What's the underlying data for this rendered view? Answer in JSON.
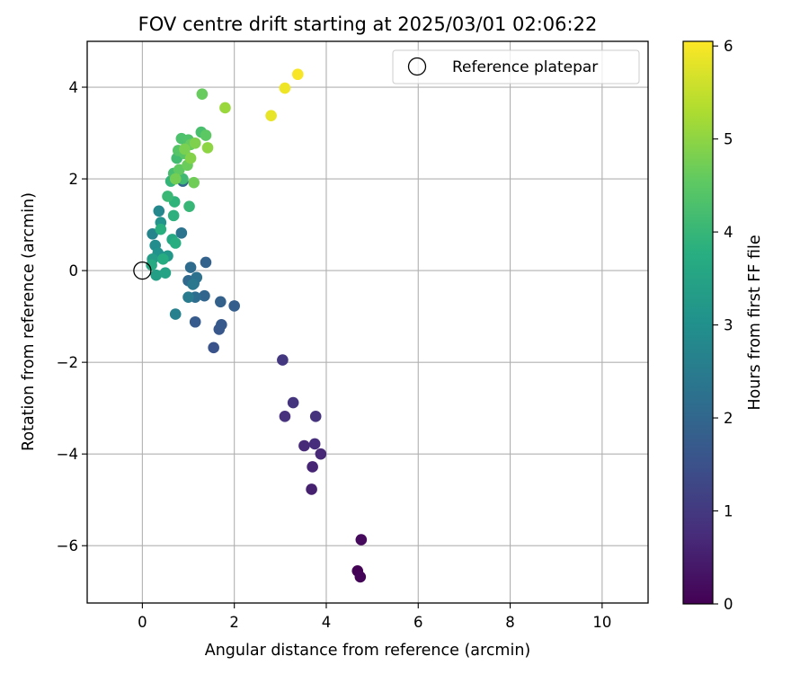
{
  "chart_data": {
    "type": "scatter",
    "title": "FOV centre drift starting at 2025/03/01 02:06:22",
    "xlabel": "Angular distance from reference (arcmin)",
    "ylabel": "Rotation from reference (arcmin)",
    "xlim": [
      -1.2,
      11.0
    ],
    "ylim": [
      -7.25,
      5.0
    ],
    "xticks": [
      0,
      2,
      4,
      6,
      8,
      10
    ],
    "yticks": [
      -6,
      -4,
      -2,
      0,
      2,
      4
    ],
    "xtick_labels": [
      "0",
      "2",
      "4",
      "6",
      "8",
      "10"
    ],
    "ytick_labels": [
      "−6",
      "−4",
      "−2",
      "0",
      "2",
      "4"
    ],
    "grid": true,
    "legend": {
      "placement": "upper-right",
      "label": "Reference platepar"
    },
    "reference_point": {
      "x": 0,
      "y": 0
    },
    "colorbar": {
      "label": "Hours from first FF file",
      "range": [
        0,
        6.05
      ],
      "ticks": [
        0,
        1,
        2,
        3,
        4,
        5,
        6
      ],
      "tick_labels": [
        "0",
        "1",
        "2",
        "3",
        "4",
        "5",
        "6"
      ],
      "colormap": "viridis"
    },
    "points": [
      {
        "x": 4.68,
        "y": -6.55,
        "c": 0.02
      },
      {
        "x": 4.74,
        "y": -6.68,
        "c": 0.05
      },
      {
        "x": 4.76,
        "y": -5.87,
        "c": 0.15
      },
      {
        "x": 3.68,
        "y": -4.77,
        "c": 0.55
      },
      {
        "x": 3.7,
        "y": -4.28,
        "c": 0.62
      },
      {
        "x": 3.88,
        "y": -4.0,
        "c": 0.68
      },
      {
        "x": 3.52,
        "y": -3.82,
        "c": 0.72
      },
      {
        "x": 3.75,
        "y": -3.78,
        "c": 0.78
      },
      {
        "x": 3.1,
        "y": -3.18,
        "c": 0.85
      },
      {
        "x": 3.77,
        "y": -3.18,
        "c": 0.88
      },
      {
        "x": 3.28,
        "y": -2.88,
        "c": 0.92
      },
      {
        "x": 3.05,
        "y": -1.95,
        "c": 0.98
      },
      {
        "x": 1.55,
        "y": -1.68,
        "c": 1.55
      },
      {
        "x": 1.67,
        "y": -1.28,
        "c": 1.62
      },
      {
        "x": 1.72,
        "y": -1.18,
        "c": 1.68
      },
      {
        "x": 1.15,
        "y": -1.12,
        "c": 1.72
      },
      {
        "x": 2.0,
        "y": -0.77,
        "c": 1.8
      },
      {
        "x": 1.7,
        "y": -0.68,
        "c": 1.85
      },
      {
        "x": 1.38,
        "y": 0.18,
        "c": 1.9
      },
      {
        "x": 1.35,
        "y": -0.55,
        "c": 1.95
      },
      {
        "x": 0.88,
        "y": 1.95,
        "c": 2.0
      },
      {
        "x": 1.0,
        "y": -0.22,
        "c": 2.05
      },
      {
        "x": 1.05,
        "y": 0.07,
        "c": 2.1
      },
      {
        "x": 1.15,
        "y": -0.58,
        "c": 2.15
      },
      {
        "x": 1.12,
        "y": -0.28,
        "c": 2.2
      },
      {
        "x": 1.18,
        "y": -0.15,
        "c": 2.25
      },
      {
        "x": 0.85,
        "y": 0.82,
        "c": 2.3
      },
      {
        "x": 1.1,
        "y": -0.3,
        "c": 2.4
      },
      {
        "x": 1.0,
        "y": -0.58,
        "c": 2.5
      },
      {
        "x": 0.72,
        "y": -0.95,
        "c": 2.6
      },
      {
        "x": 0.22,
        "y": 0.8,
        "c": 2.7
      },
      {
        "x": 0.36,
        "y": 1.3,
        "c": 2.8
      },
      {
        "x": 0.28,
        "y": 0.55,
        "c": 2.9
      },
      {
        "x": 0.42,
        "y": 0.3,
        "c": 3.0
      },
      {
        "x": 0.34,
        "y": 0.38,
        "c": 3.05
      },
      {
        "x": 0.4,
        "y": 1.05,
        "c": 3.1
      },
      {
        "x": 0.55,
        "y": 0.32,
        "c": 3.2
      },
      {
        "x": 0.22,
        "y": 0.25,
        "c": 3.3
      },
      {
        "x": 0.3,
        "y": -0.1,
        "c": 3.4
      },
      {
        "x": 0.5,
        "y": -0.05,
        "c": 3.5
      },
      {
        "x": 0.65,
        "y": 0.68,
        "c": 3.6
      },
      {
        "x": 0.2,
        "y": 0.12,
        "c": 3.65
      },
      {
        "x": 0.45,
        "y": 0.25,
        "c": 3.7
      },
      {
        "x": 0.72,
        "y": 0.6,
        "c": 3.75
      },
      {
        "x": 0.4,
        "y": 0.9,
        "c": 3.8
      },
      {
        "x": 0.68,
        "y": 1.2,
        "c": 3.85
      },
      {
        "x": 0.7,
        "y": 1.5,
        "c": 3.9
      },
      {
        "x": 0.62,
        "y": 1.95,
        "c": 3.95
      },
      {
        "x": 1.02,
        "y": 1.4,
        "c": 4.0
      },
      {
        "x": 0.55,
        "y": 1.62,
        "c": 4.05
      },
      {
        "x": 0.88,
        "y": 2.0,
        "c": 4.1
      },
      {
        "x": 0.75,
        "y": 2.45,
        "c": 4.15
      },
      {
        "x": 0.68,
        "y": 2.12,
        "c": 4.2
      },
      {
        "x": 1.28,
        "y": 3.02,
        "c": 4.25
      },
      {
        "x": 0.85,
        "y": 2.88,
        "c": 4.3
      },
      {
        "x": 1.0,
        "y": 2.85,
        "c": 4.35
      },
      {
        "x": 0.78,
        "y": 2.62,
        "c": 4.4
      },
      {
        "x": 0.92,
        "y": 2.55,
        "c": 4.45
      },
      {
        "x": 1.38,
        "y": 2.95,
        "c": 4.5
      },
      {
        "x": 0.8,
        "y": 2.2,
        "c": 4.55
      },
      {
        "x": 1.05,
        "y": 2.75,
        "c": 4.6
      },
      {
        "x": 1.3,
        "y": 3.85,
        "c": 4.62
      },
      {
        "x": 0.98,
        "y": 2.3,
        "c": 4.65
      },
      {
        "x": 1.12,
        "y": 1.92,
        "c": 4.7
      },
      {
        "x": 0.72,
        "y": 2.0,
        "c": 4.75
      },
      {
        "x": 0.92,
        "y": 2.65,
        "c": 4.8
      },
      {
        "x": 1.15,
        "y": 2.78,
        "c": 4.85
      },
      {
        "x": 1.05,
        "y": 2.45,
        "c": 4.9
      },
      {
        "x": 1.42,
        "y": 2.68,
        "c": 5.0
      },
      {
        "x": 1.8,
        "y": 3.55,
        "c": 5.1
      },
      {
        "x": 2.8,
        "y": 3.38,
        "c": 5.85
      },
      {
        "x": 3.1,
        "y": 3.98,
        "c": 5.92
      },
      {
        "x": 3.38,
        "y": 4.28,
        "c": 6.0
      }
    ]
  }
}
